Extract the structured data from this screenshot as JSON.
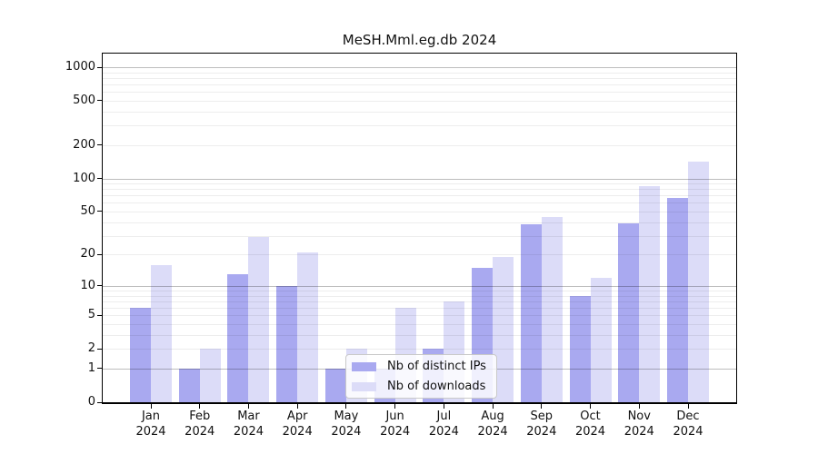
{
  "title": "MeSH.Mml.eg.db 2024",
  "colors": {
    "distinct_ips_bar": "#a9a9f0",
    "downloads_bar": "#dcdcf8",
    "grid_major": "rgba(0,0,0,0.26)",
    "grid_minor": "rgba(0,0,0,0.07)",
    "axis": "#000000"
  },
  "legend": {
    "items": [
      {
        "label": "Nb of distinct IPs",
        "color": "#a9a9f0"
      },
      {
        "label": "Nb of downloads",
        "color": "#dcdcf8"
      }
    ]
  },
  "x_axis": {
    "year": "2024",
    "months": [
      "Jan",
      "Feb",
      "Mar",
      "Apr",
      "May",
      "Jun",
      "Jul",
      "Aug",
      "Sep",
      "Oct",
      "Nov",
      "Dec"
    ]
  },
  "y_axis": {
    "tick_labels": [
      "0",
      "1",
      "2",
      "5",
      "10",
      "20",
      "50",
      "100",
      "200",
      "500",
      "1000"
    ]
  },
  "chart_data": {
    "type": "bar",
    "title": "MeSH.Mml.eg.db 2024",
    "categories": [
      "Jan 2024",
      "Feb 2024",
      "Mar 2024",
      "Apr 2024",
      "May 2024",
      "Jun 2024",
      "Jul 2024",
      "Aug 2024",
      "Sep 2024",
      "Oct 2024",
      "Nov 2024",
      "Dec 2024"
    ],
    "series": [
      {
        "name": "Nb of distinct IPs",
        "color": "#a9a9f0",
        "values": [
          6,
          1,
          13,
          10,
          1,
          1,
          2,
          15,
          38,
          8,
          39,
          67
        ]
      },
      {
        "name": "Nb of downloads",
        "color": "#dcdcf8",
        "values": [
          16,
          2,
          29,
          21,
          2,
          6,
          7,
          19,
          45,
          12,
          85,
          143
        ]
      }
    ],
    "yscale": "log10(1+x)",
    "yticks": [
      0,
      1,
      2,
      5,
      10,
      20,
      50,
      100,
      200,
      500,
      1000
    ],
    "ylim": [
      0,
      1325
    ],
    "grid": "major and minor horizontal gridlines",
    "legend_position": "inside, lower middle"
  }
}
